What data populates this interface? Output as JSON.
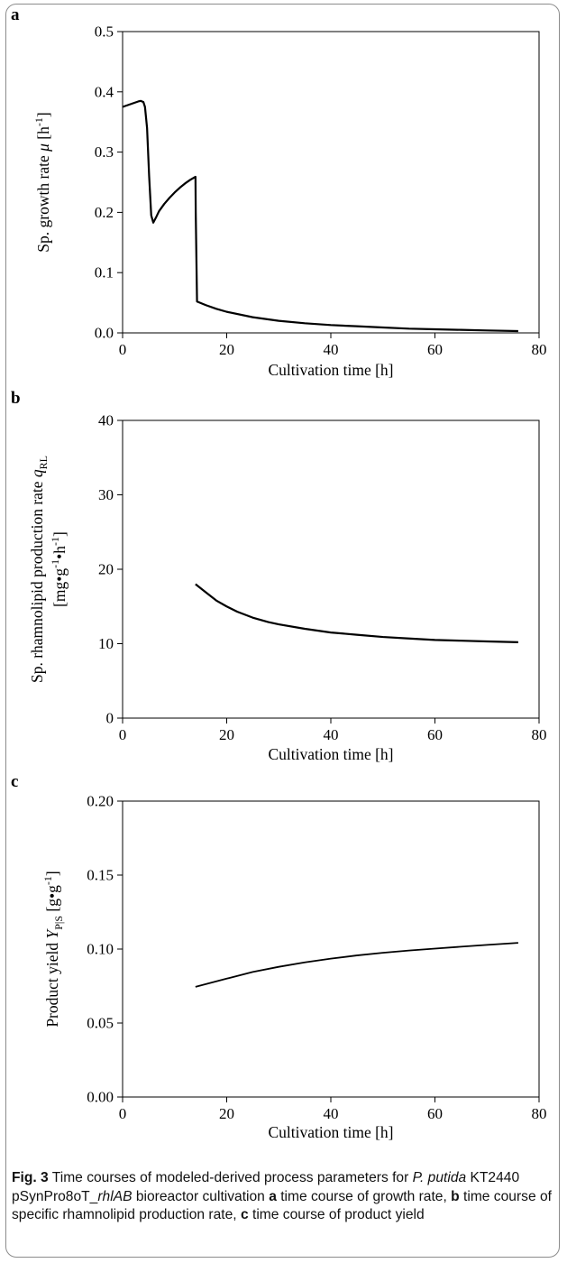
{
  "caption": {
    "fig_label": "Fig. 3",
    "text_1": " Time courses of modeled-derived process parameters for ",
    "organism": "P. putida",
    "text_2": " KT2440 pSynPro8oT_",
    "gene": "rhlAB",
    "text_3": " bioreactor cultivation ",
    "a_label": "a",
    "a_text": " time course of growth rate, ",
    "b_label": "b",
    "b_text": " time course of specific rhamnolipid production rate, ",
    "c_label": "c",
    "c_text": " time course of product yield"
  },
  "chart_data": [
    {
      "panel": "a",
      "type": "line",
      "xlabel": "Cultivation time [h]",
      "ylabel": "Sp. growth rate μ [h⁻¹]",
      "xlim": [
        0,
        80
      ],
      "ylim": [
        0,
        0.5
      ],
      "xticks": [
        "0",
        "20",
        "40",
        "60",
        "80"
      ],
      "yticks": [
        "0.0",
        "0.1",
        "0.2",
        "0.3",
        "0.4",
        "0.5"
      ],
      "grid": false,
      "series": [
        {
          "x": [
            0,
            1,
            2,
            3,
            3.5,
            4,
            4.3,
            4.7,
            5.1,
            5.5,
            5.9,
            6.5,
            7,
            8,
            9,
            10,
            11,
            12,
            13,
            14,
            14.05,
            14.3,
            16,
            18,
            20,
            25,
            30,
            35,
            40,
            45,
            50,
            55,
            60,
            65,
            70,
            76
          ],
          "y": [
            0.375,
            0.378,
            0.381,
            0.384,
            0.385,
            0.383,
            0.375,
            0.34,
            0.26,
            0.195,
            0.183,
            0.193,
            0.202,
            0.214,
            0.224,
            0.233,
            0.241,
            0.248,
            0.254,
            0.259,
            0.2,
            0.052,
            0.046,
            0.04,
            0.035,
            0.026,
            0.02,
            0.016,
            0.013,
            0.011,
            0.009,
            0.007,
            0.006,
            0.005,
            0.004,
            0.003
          ]
        }
      ]
    },
    {
      "panel": "b",
      "type": "line",
      "xlabel": "Cultivation time [h]",
      "ylabel": "Sp. rhamnolipid production rate q_RL",
      "ylabel2": "[mg•g⁻¹•h⁻¹]",
      "xlim": [
        0,
        80
      ],
      "ylim": [
        0,
        40
      ],
      "xticks": [
        "0",
        "20",
        "40",
        "60",
        "80"
      ],
      "yticks": [
        "0",
        "10",
        "20",
        "30",
        "40"
      ],
      "grid": false,
      "series": [
        {
          "x": [
            14,
            16,
            18,
            20,
            22,
            25,
            28,
            30,
            35,
            40,
            45,
            50,
            55,
            60,
            65,
            70,
            76
          ],
          "y": [
            18.0,
            16.9,
            15.8,
            15.0,
            14.3,
            13.5,
            12.9,
            12.6,
            12.0,
            11.5,
            11.2,
            10.9,
            10.7,
            10.5,
            10.4,
            10.3,
            10.2
          ]
        }
      ]
    },
    {
      "panel": "c",
      "type": "line",
      "xlabel": "Cultivation time [h]",
      "ylabel": "Product yield Y_P|S [g•g⁻¹]",
      "xlim": [
        0,
        80
      ],
      "ylim": [
        0,
        0.2
      ],
      "xticks": [
        "0",
        "20",
        "40",
        "60",
        "80"
      ],
      "yticks": [
        "0.00",
        "0.05",
        "0.10",
        "0.15",
        "0.20"
      ],
      "grid": false,
      "series": [
        {
          "x": [
            14,
            20,
            25,
            30,
            35,
            40,
            45,
            50,
            55,
            60,
            65,
            70,
            76
          ],
          "y": [
            0.0745,
            0.08,
            0.0845,
            0.088,
            0.091,
            0.0935,
            0.0957,
            0.0975,
            0.099,
            0.1003,
            0.1016,
            0.1028,
            0.1042
          ]
        }
      ]
    }
  ]
}
